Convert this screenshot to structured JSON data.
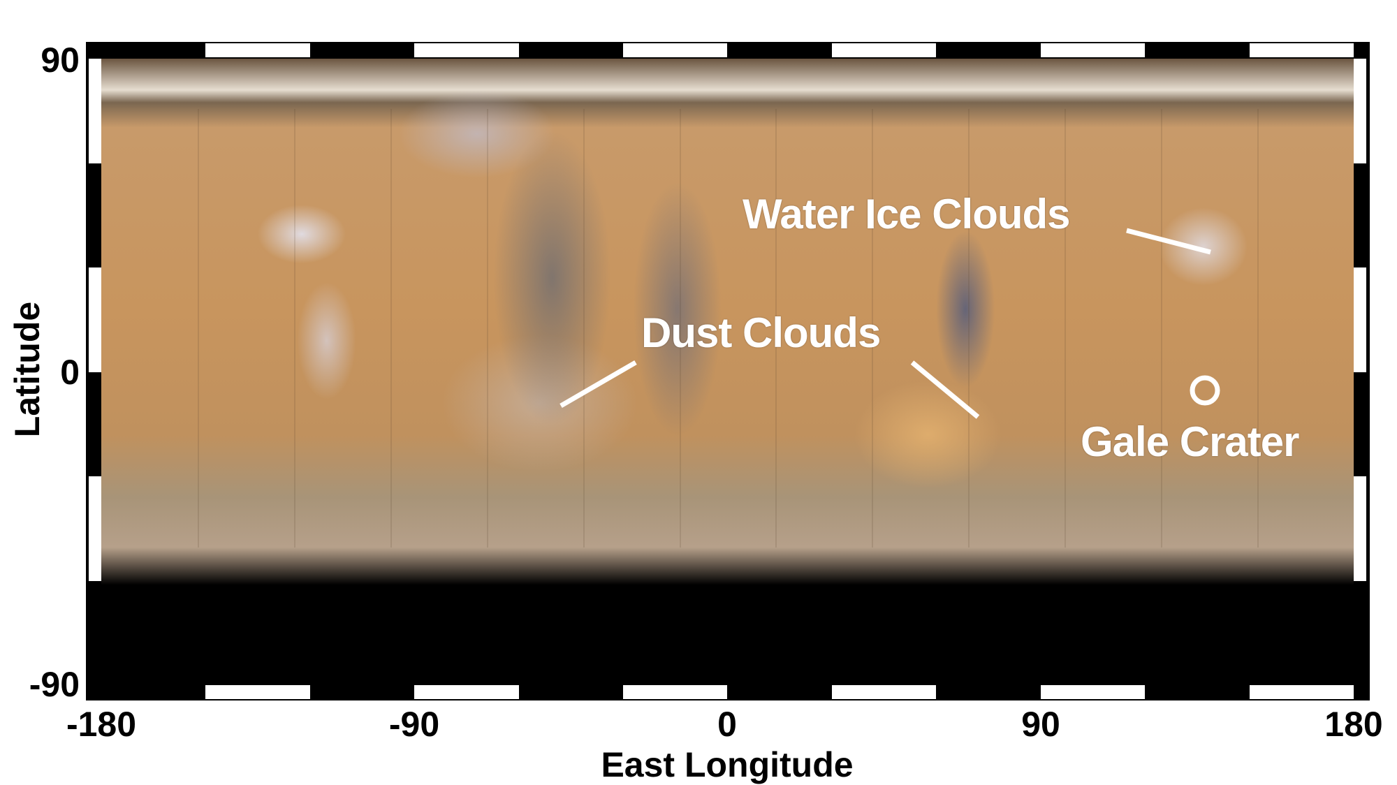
{
  "map": {
    "projection": "equirectangular",
    "xlabel": "East Longitude",
    "ylabel": "Latitude",
    "x_ticks": [
      "-180",
      "-90",
      "0",
      "90",
      "180"
    ],
    "y_ticks": [
      "90",
      "0",
      "-90"
    ],
    "x_range": [
      -180,
      180
    ],
    "y_range": [
      -90,
      90
    ],
    "annotations": {
      "water_ice_clouds": "Water Ice Clouds",
      "dust_clouds": "Dust Clouds",
      "gale_crater": "Gale Crater"
    },
    "gale_crater_marker": "circle",
    "colors": {
      "annotation": "#ffffff",
      "surface": "#c8955e",
      "border": "#000000"
    }
  }
}
